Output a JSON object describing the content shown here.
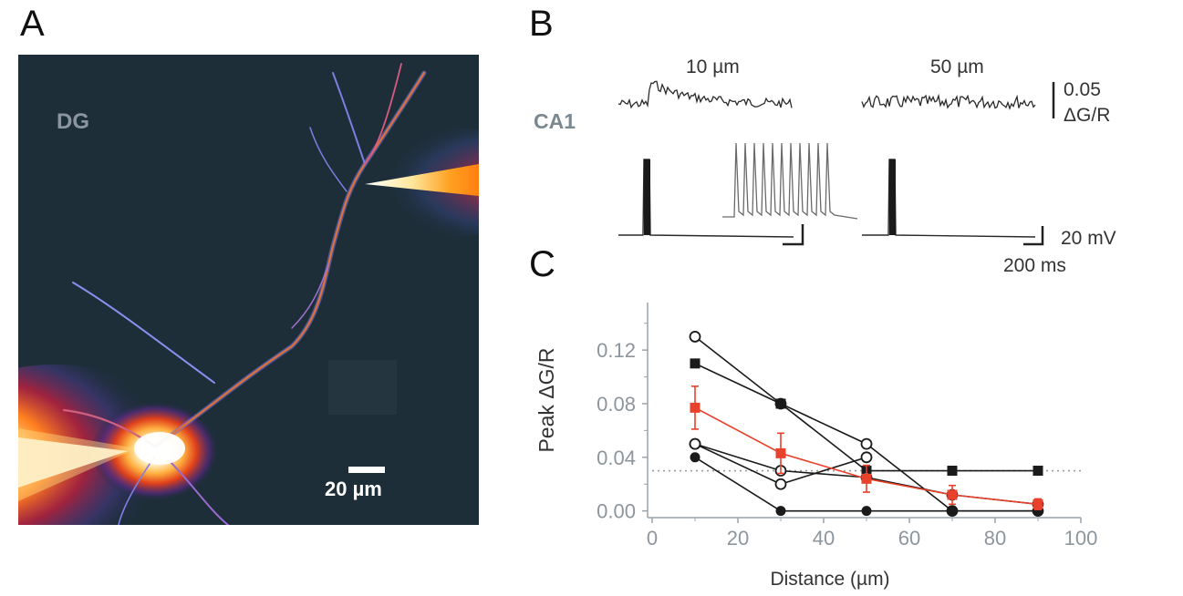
{
  "panels": {
    "a": "A",
    "b": "B",
    "c": "C"
  },
  "panel_a": {
    "region_label": "DG",
    "scale_bar_label": "20 µm"
  },
  "panel_b": {
    "row_label": "CA1",
    "trace_labels": [
      "10 µm",
      "50 µm"
    ],
    "fluor_scale_value": "0.05",
    "fluor_scale_unit": "ΔG/R",
    "voltage_scale": "20 mV",
    "time_scale": "200 ms"
  },
  "chart_data": {
    "type": "line",
    "xlabel": "Distance (µm)",
    "ylabel": "Peak ΔG/R",
    "xlim": [
      0,
      100
    ],
    "ylim": [
      -0.005,
      0.15
    ],
    "x_ticks": [
      0,
      20,
      40,
      60,
      80,
      100
    ],
    "x_tick_labels": [
      "0",
      "20",
      "40",
      "60",
      "80",
      "100"
    ],
    "y_ticks": [
      0.0,
      0.04,
      0.08,
      0.12
    ],
    "y_tick_labels": [
      "0.00",
      "0.04",
      "0.08",
      "0.12"
    ],
    "threshold": 0.03,
    "x": [
      10,
      30,
      50,
      70,
      90
    ],
    "series": [
      {
        "marker": "open-circle",
        "color": "#1a1a1a",
        "x": [
          10,
          30,
          50,
          70,
          90
        ],
        "values": [
          0.13,
          0.08,
          0.05,
          0.0,
          0.0
        ]
      },
      {
        "marker": "filled-square",
        "color": "#1a1a1a",
        "x": [
          10,
          30,
          50,
          70,
          90
        ],
        "values": [
          0.11,
          0.08,
          0.03,
          0.03,
          0.03
        ]
      },
      {
        "marker": "open-circle",
        "color": "#1a1a1a",
        "x": [
          10,
          30,
          50
        ],
        "values": [
          0.05,
          0.02,
          0.04
        ]
      },
      {
        "marker": "open-circle",
        "color": "#1a1a1a",
        "x": [
          10,
          30,
          50,
          70,
          90
        ],
        "values": [
          0.05,
          0.03,
          0.025,
          0.012,
          0.005
        ]
      },
      {
        "marker": "filled-circle",
        "color": "#1a1a1a",
        "x": [
          10,
          30,
          50,
          70,
          90
        ],
        "values": [
          0.04,
          0.0,
          0.0,
          0.0,
          0.0
        ]
      },
      {
        "marker": "filled-square",
        "color": "#e8412c",
        "x": [
          10,
          30,
          50,
          70,
          90
        ],
        "values": [
          0.077,
          0.043,
          0.024,
          0.012,
          0.005
        ],
        "errors": [
          0.016,
          0.015,
          0.01,
          0.007,
          0.004
        ]
      }
    ],
    "grid": false,
    "legend": "none"
  }
}
